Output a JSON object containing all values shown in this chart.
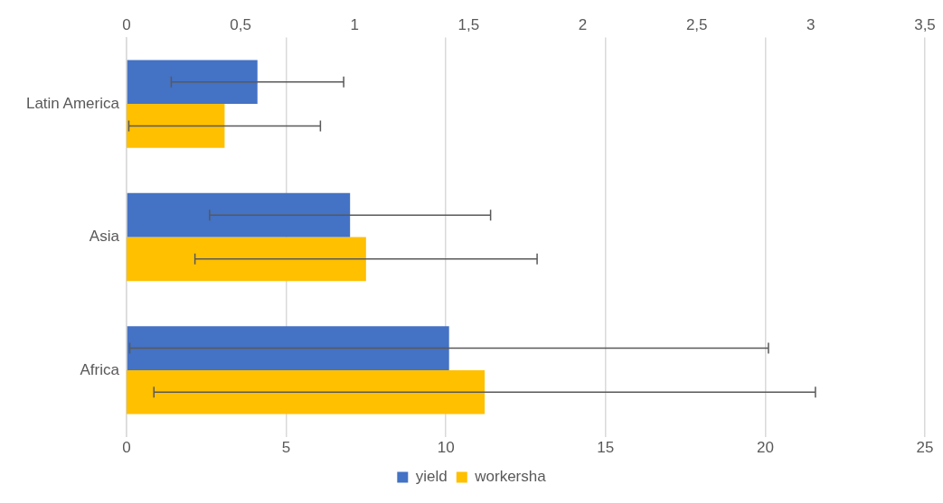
{
  "chart_data": {
    "type": "bar",
    "orientation": "horizontal",
    "categories": [
      "Latin America",
      "Asia",
      "Africa"
    ],
    "series": [
      {
        "name": "yield",
        "color": "#4472c4",
        "values": [
          4.1,
          7.0,
          10.1
        ],
        "errors": [
          2.7,
          4.4,
          10.0
        ]
      },
      {
        "name": "workersha",
        "color": "#ffc000",
        "axis": "x2",
        "values": [
          0.43,
          1.05,
          1.57
        ],
        "errors": [
          0.42,
          0.75,
          1.45
        ]
      }
    ],
    "xlim": [
      0,
      25
    ],
    "xticks": [
      0,
      5,
      10,
      15,
      20,
      25
    ],
    "x2lim": [
      0,
      3.5
    ],
    "x2ticks": [
      0,
      {
        "value": 0.5,
        "label": "0,5"
      },
      1,
      {
        "value": 1.5,
        "label": "1,5"
      },
      2,
      {
        "value": 2.5,
        "label": "2,5"
      },
      3,
      {
        "value": 3.5,
        "label": "3,5"
      }
    ],
    "grid": "x",
    "legend": "bottom"
  }
}
